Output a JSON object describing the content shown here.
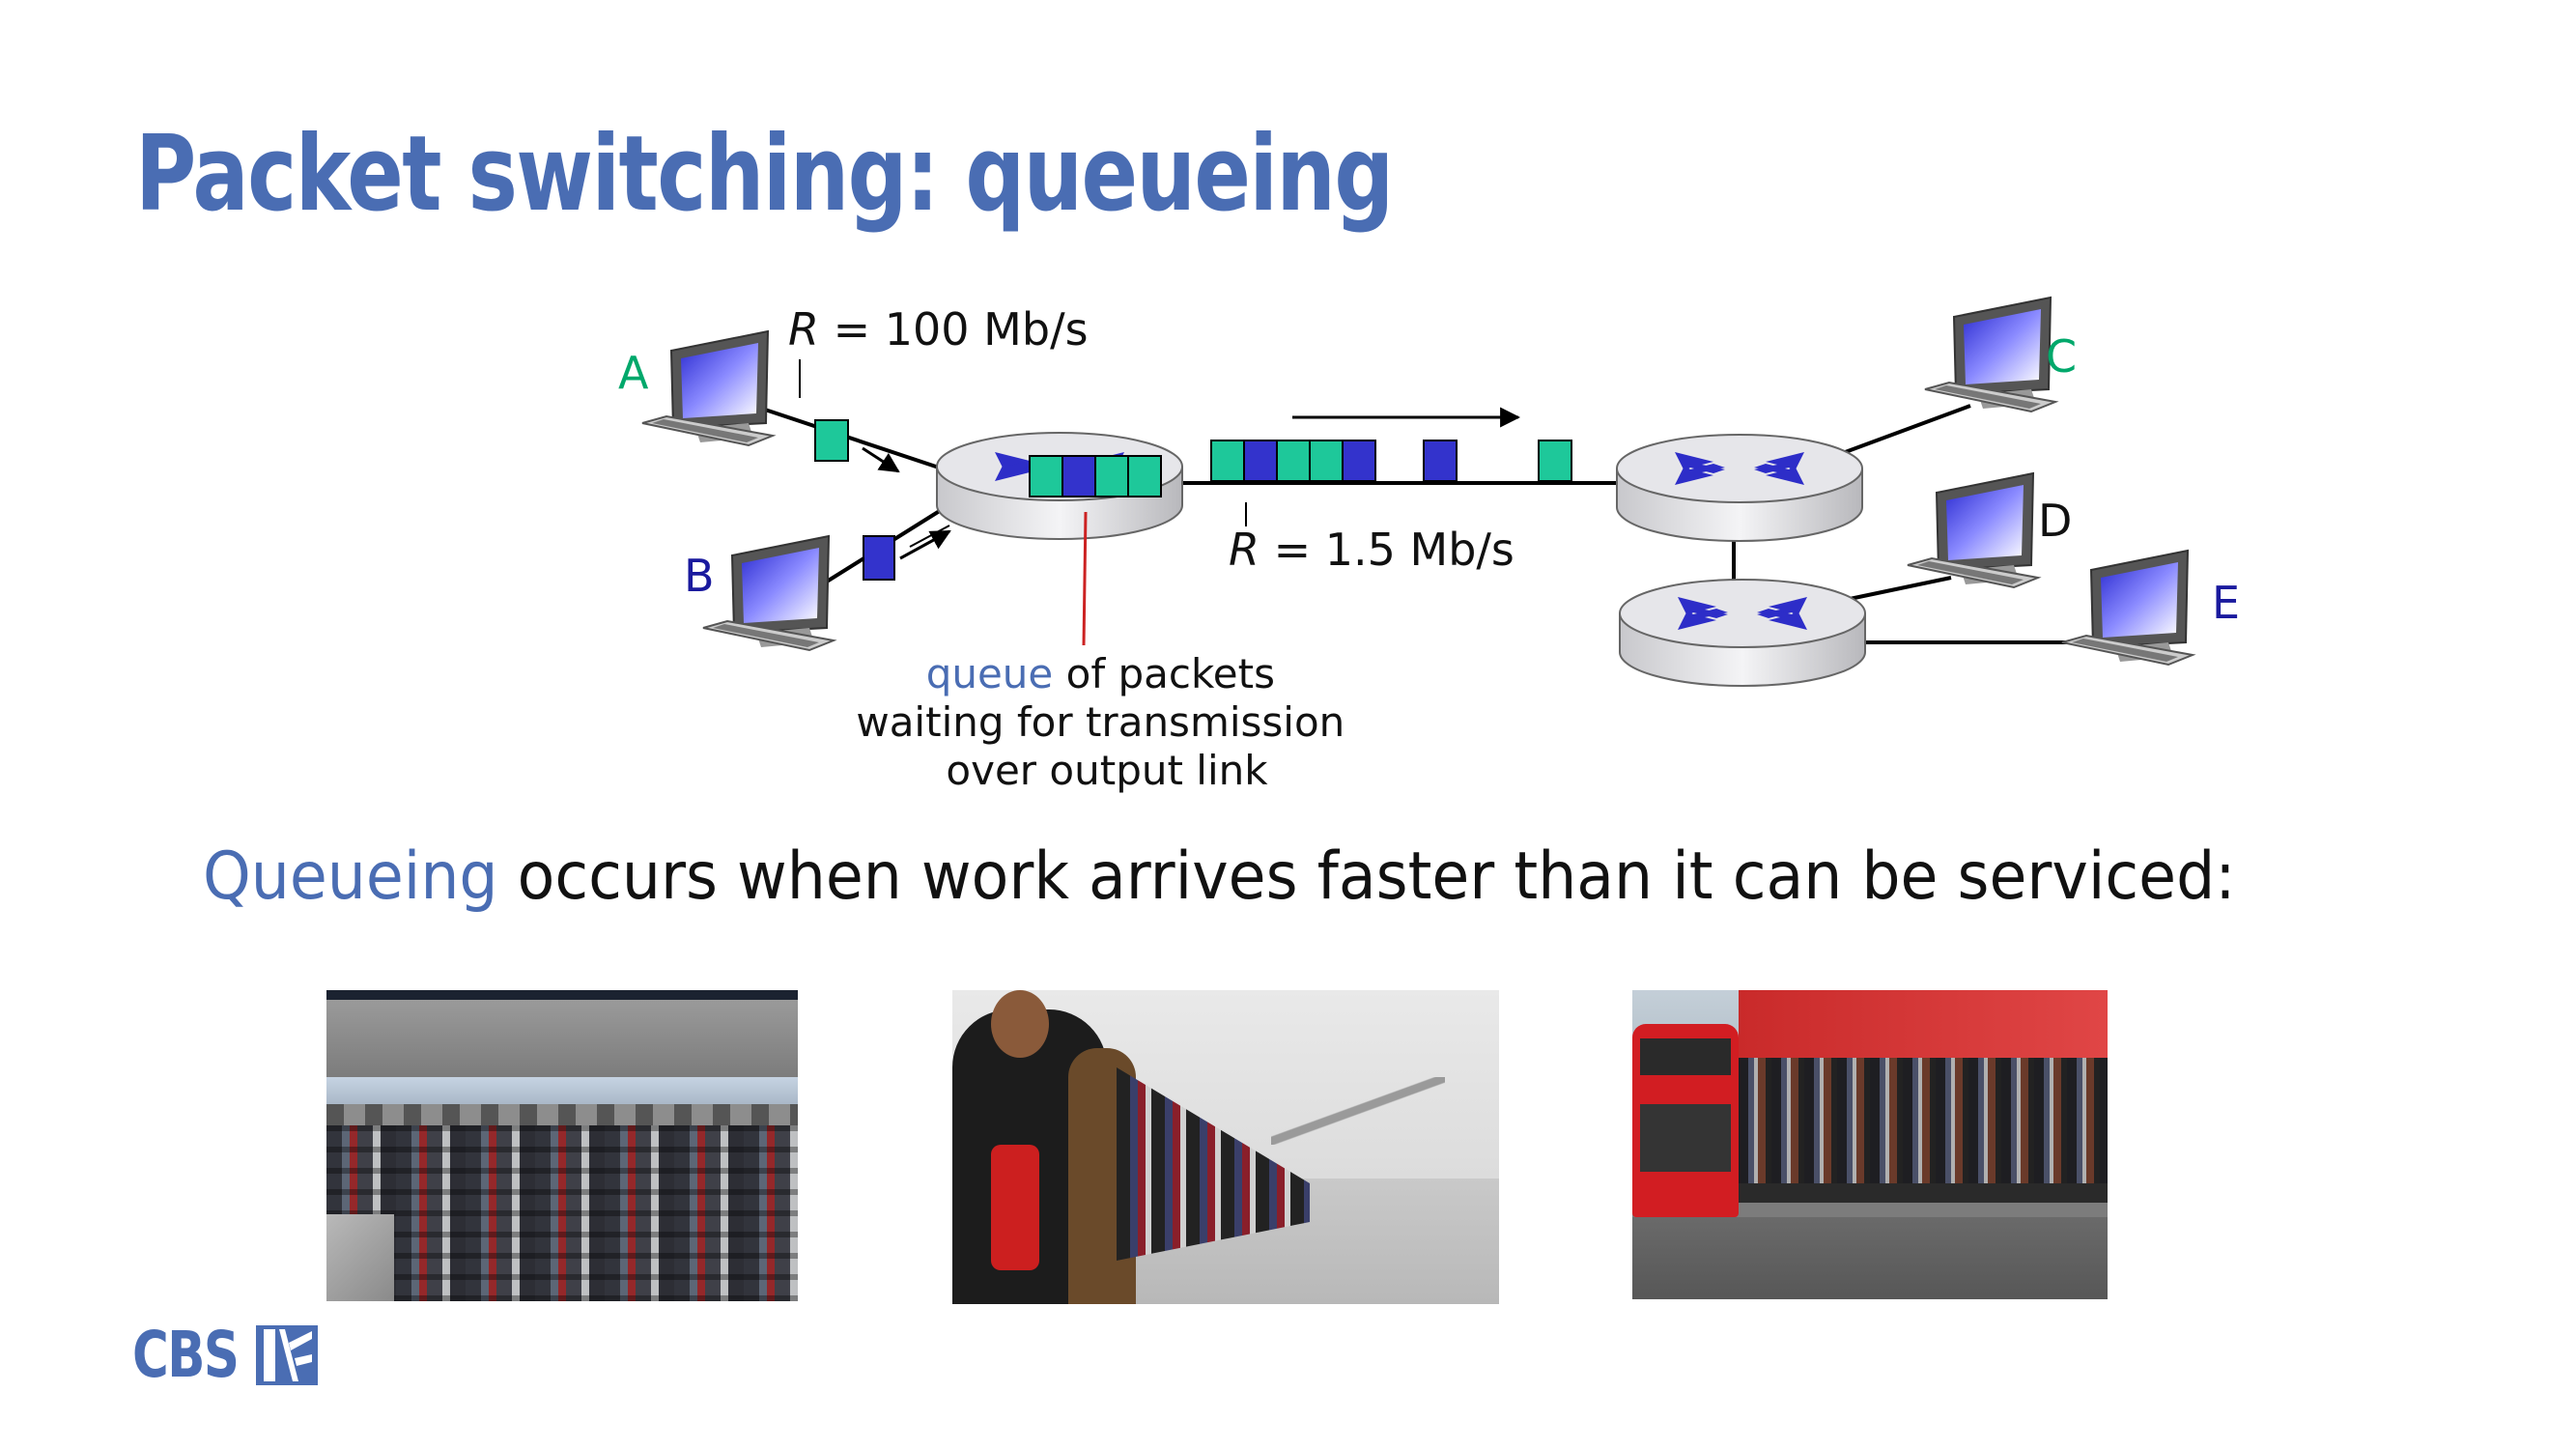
{
  "slide": {
    "title": "Packet switching: queueing",
    "bullet_highlight": "Queueing",
    "bullet_rest": " occurs when work arrives faster than it can be serviced:"
  },
  "diagram": {
    "host_a": "A",
    "host_b": "B",
    "host_c": "C",
    "host_d": "D",
    "host_e": "E",
    "rate_in_var": "R",
    "rate_in_rest": " = 100 Mb/s",
    "rate_out_var": "R",
    "rate_out_rest": " = 1.5 Mb/s",
    "queue_word": "queue",
    "queue_line1_rest": " of packets",
    "queue_line2": "waiting for transmission",
    "queue_line3": "over output link"
  },
  "logo": {
    "text": "CBS"
  },
  "colors": {
    "accent": "#4a6db3",
    "packet_green": "#1ec89a",
    "packet_blue": "#3333cc",
    "label_green": "#00a86b",
    "label_blue": "#1a1a9e",
    "queue_pointer": "#cc2222"
  }
}
